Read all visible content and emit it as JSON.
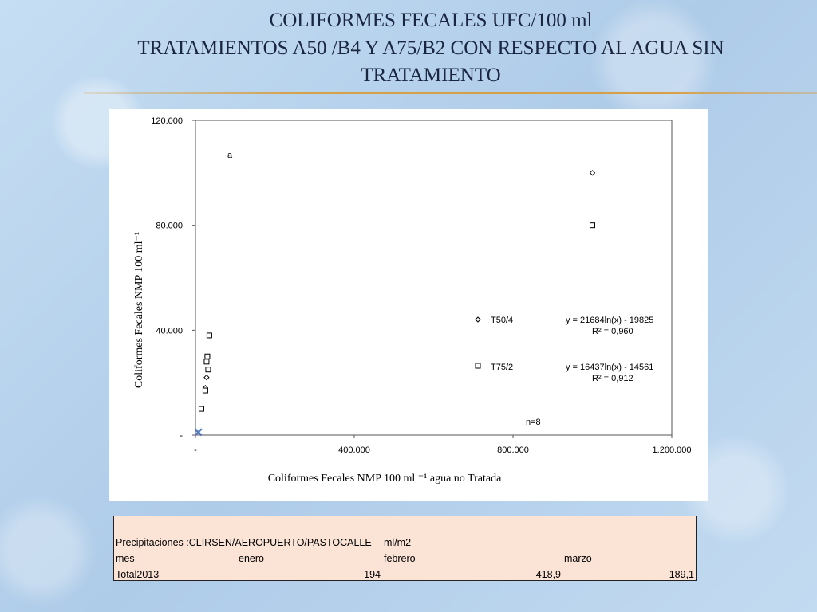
{
  "title": {
    "line1": "COLIFORMES FECALES  UFC/100  ml",
    "line2": "TRATAMIENTOS A50 /B4 Y A75/B2 CON RESPECTO AL AGUA SIN",
    "line3": "TRATAMIENTO"
  },
  "chart_data": {
    "type": "scatter",
    "xlabel": "Coliformes Fecales NMP 100 ml ⁻¹ agua no Tratada",
    "ylabel": "Coliformes Fecales NMP 100 ml⁻¹",
    "xlim": [
      0,
      1200000
    ],
    "ylim": [
      0,
      120000
    ],
    "x_ticks": [
      0,
      400000,
      800000,
      1200000
    ],
    "x_tick_labels": [
      "-",
      "400.000",
      "800.000",
      "1.200.000"
    ],
    "y_ticks": [
      0,
      40000,
      80000,
      120000
    ],
    "y_tick_labels": [
      "-",
      "40.000",
      "80.000",
      "120.000"
    ],
    "grid": false,
    "annotations": {
      "letter": "a",
      "n": "n=8"
    },
    "series": [
      {
        "name": "T50/4",
        "marker": "diamond",
        "points": [
          [
            35000,
            38000
          ],
          [
            30000,
            30000
          ],
          [
            28000,
            22000
          ],
          [
            25000,
            18000
          ],
          [
            1000000,
            100000
          ]
        ],
        "trend": {
          "a": 21684,
          "b": -19825,
          "equation": "y = 21684ln(x) - 19825",
          "r2": "R² = 0,960"
        }
      },
      {
        "name": "T75/2",
        "marker": "square",
        "points": [
          [
            35000,
            38000
          ],
          [
            30000,
            30000
          ],
          [
            28000,
            28000
          ],
          [
            32000,
            25000
          ],
          [
            25000,
            17000
          ],
          [
            15000,
            10000
          ],
          [
            1000000,
            80000
          ]
        ],
        "trend": {
          "a": 16437,
          "b": -14561,
          "equation": "y = 16437ln(x) - 14561",
          "r2": "R² = 0,912"
        }
      }
    ],
    "origin_points": [
      [
        1000,
        1000
      ],
      [
        1500,
        1200
      ]
    ]
  },
  "precip_table": {
    "row1": {
      "label": "Precipitaciones :CLIRSEN/AEROPUERTO/PASTOCALLE",
      "unit": "ml/m2"
    },
    "row2": {
      "c1": "mes",
      "c2": "enero",
      "c3": "febrero",
      "c4": "marzo"
    },
    "row3": {
      "c1": "Total2013",
      "c2": "194",
      "c3": "418,9",
      "c4": "189,1"
    }
  }
}
